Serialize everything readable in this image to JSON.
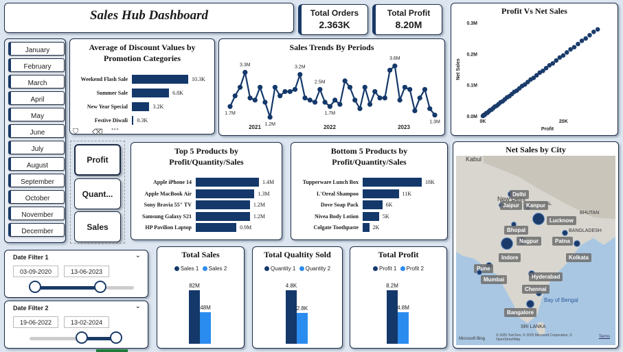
{
  "header": {
    "title": "Sales Hub Dashboard"
  },
  "kpis": {
    "orders_label": "Total Orders",
    "orders_value": "2.363K",
    "profit_label": "Total Profit",
    "profit_value": "8.20M"
  },
  "months": [
    "January",
    "February",
    "March",
    "April",
    "May",
    "June",
    "July",
    "August",
    "September",
    "October",
    "November",
    "December"
  ],
  "metric_toggle": {
    "profit": "Profit",
    "quantity": "Quant...",
    "sales": "Sales"
  },
  "discount_chart": {
    "title_line1": "Average of Discount Values by",
    "title_line2": "Promotion Categories",
    "rows": [
      {
        "label": "Weekend Flash Sale",
        "value": 10.3,
        "text": "10.3K"
      },
      {
        "label": "Summer Sale",
        "value": 6.8,
        "text": "6.8K"
      },
      {
        "label": "New Year Special",
        "value": 3.2,
        "text": "3.2K"
      },
      {
        "label": "Festive Diwali",
        "value": 0.3,
        "text": "0.3K"
      }
    ]
  },
  "trend_chart": {
    "title": "Sales Trends By Periods"
  },
  "scatter_chart": {
    "title": "Profit Vs Net Sales",
    "xlabel": "Profit",
    "ylabel": "Net Sales"
  },
  "top5": {
    "title_line1": "Top 5 Products by",
    "title_line2": "Profit/Quantity/Sales",
    "rows": [
      {
        "label": "Apple iPhone 14",
        "value": 1.4,
        "text": "1.4M"
      },
      {
        "label": "Apple MacBook Air",
        "value": 1.3,
        "text": "1.3M"
      },
      {
        "label": "Sony Bravia 55\" TV",
        "value": 1.2,
        "text": "1.2M"
      },
      {
        "label": "Samsung Galaxy S21",
        "value": 1.2,
        "text": "1.2M"
      },
      {
        "label": "HP Pavilion Laptop",
        "value": 0.9,
        "text": "0.9M"
      }
    ]
  },
  "bottom5": {
    "title_line1": "Bottom 5 Products by",
    "title_line2": "Profit/Quantity/Sales",
    "rows": [
      {
        "label": "Tupperware Lunch Box",
        "value": 18,
        "text": "18K"
      },
      {
        "label": "L'Oreal Shampoo",
        "value": 11,
        "text": "11K"
      },
      {
        "label": "Dove Soap Pack",
        "value": 6,
        "text": "6K"
      },
      {
        "label": "Nivea Body Lotion",
        "value": 5,
        "text": "5K"
      },
      {
        "label": "Colgate Toothpaste",
        "value": 2,
        "text": "2K"
      }
    ]
  },
  "map": {
    "title": "Net Sales by City",
    "names": {
      "kabul": "Kabul",
      "newdelhi": "New Delhi",
      "nepal": "NEPAL",
      "bhutan": "BHUTAN",
      "bangladesh": "BANGLADESH",
      "bay": "Bay of Bengal",
      "srilanka": "SRI LANKA"
    },
    "cities": [
      "Delhi",
      "Jaipur",
      "Kanpur",
      "Lucknow",
      "Bhopal",
      "Nagpur",
      "Patna",
      "Indore",
      "Kolkata",
      "Pune",
      "Mumbai",
      "Hyderabad",
      "Chennai",
      "Bangalore"
    ],
    "credit": "© 2025 TomTom, © 2025 Microsoft Corporation, © OpenStreetMap",
    "terms": "Terms",
    "brand": "Microsoft Bing"
  },
  "date_filter_1": {
    "title": "Date Filter 1",
    "start": "03-09-2020",
    "end": "13-06-2023"
  },
  "date_filter_2": {
    "title": "Date Filter 2",
    "start": "19-06-2022",
    "end": "13-02-2024"
  },
  "compare_sales": {
    "title": "Total Sales",
    "legend1": "Sales 1",
    "legend2": "Sales 2",
    "label1": "82M",
    "label2": "48M"
  },
  "compare_quantity": {
    "title": "Total Qualtity Sold",
    "legend1": "Quantity 1",
    "legend2": "Quantity 2",
    "label1": "4.8K",
    "label2": "2.8K"
  },
  "compare_profit": {
    "title": "Total Profit",
    "legend1": "Profit 1",
    "legend2": "Profit 2",
    "label1": "8.2M",
    "label2": "4.8M"
  },
  "chart_data": [
    {
      "type": "bar",
      "title": "Average of Discount Values by Promotion Categories",
      "categories": [
        "Weekend Flash Sale",
        "Summer Sale",
        "New Year Special",
        "Festive Diwali"
      ],
      "values": [
        10.3,
        6.8,
        3.2,
        0.3
      ]
    },
    {
      "type": "line",
      "title": "Sales Trends By Periods",
      "x_tick_labels": [
        "2021",
        "2022",
        "2023"
      ],
      "values": [
        1.7,
        2.2,
        2.6,
        3.3,
        2.1,
        2.0,
        2.6,
        1.9,
        1.2,
        2.6,
        2.2,
        2.4,
        2.4,
        2.5,
        3.2,
        2.1,
        2.0,
        1.9,
        2.5,
        1.9,
        1.7,
        2.0,
        1.8,
        2.9,
        2.6,
        2.0,
        1.6,
        2.6,
        1.8,
        2.4,
        2.1,
        2.1,
        3.4,
        3.6,
        2.0,
        2.6,
        2.5,
        1.5,
        2.1,
        2.5,
        1.6,
        1.3
      ],
      "data_labels": [
        "1.7M",
        "3.3M",
        "1.2M",
        "3.2M",
        "2.5M",
        "1.7M",
        "3.6M",
        "1.3M"
      ]
    },
    {
      "type": "scatter",
      "title": "Profit Vs Net Sales",
      "xlabel": "Profit",
      "ylabel": "Net Sales",
      "x_tick_labels": [
        "0K",
        "20K"
      ],
      "y_tick_labels": [
        "0.0M",
        "0.1M",
        "0.2M",
        "0.3M"
      ],
      "xlim": [
        0,
        30
      ],
      "ylim": [
        0,
        0.3
      ]
    },
    {
      "type": "bar",
      "title": "Top 5 Products by Profit/Quantity/Sales",
      "categories": [
        "Apple iPhone 14",
        "Apple MacBook Air",
        "Sony Bravia 55\" TV",
        "Samsung Galaxy S21",
        "HP Pavilion Laptop"
      ],
      "values": [
        1.4,
        1.3,
        1.2,
        1.2,
        0.9
      ]
    },
    {
      "type": "bar",
      "title": "Bottom 5 Products by Profit/Quantity/Sales",
      "categories": [
        "Tupperware Lunch Box",
        "L'Oreal Shampoo",
        "Dove Soap Pack",
        "Nivea Body Lotion",
        "Colgate Toothpaste"
      ],
      "values": [
        18,
        11,
        6,
        5,
        2
      ]
    },
    {
      "type": "bar",
      "title": "Total Sales",
      "series": [
        {
          "name": "Sales 1",
          "values": [
            82
          ]
        },
        {
          "name": "Sales 2",
          "values": [
            48
          ]
        }
      ]
    },
    {
      "type": "bar",
      "title": "Total Qualtity Sold",
      "series": [
        {
          "name": "Quantity 1",
          "values": [
            4.8
          ]
        },
        {
          "name": "Quantity 2",
          "values": [
            2.8
          ]
        }
      ]
    },
    {
      "type": "bar",
      "title": "Total Profit",
      "series": [
        {
          "name": "Profit 1",
          "values": [
            8.2
          ]
        },
        {
          "name": "Profit 2",
          "values": [
            4.8
          ]
        }
      ]
    }
  ],
  "colors": {
    "dark": "#14386a",
    "light": "#2b8cf0",
    "background": "#dde6f0"
  }
}
